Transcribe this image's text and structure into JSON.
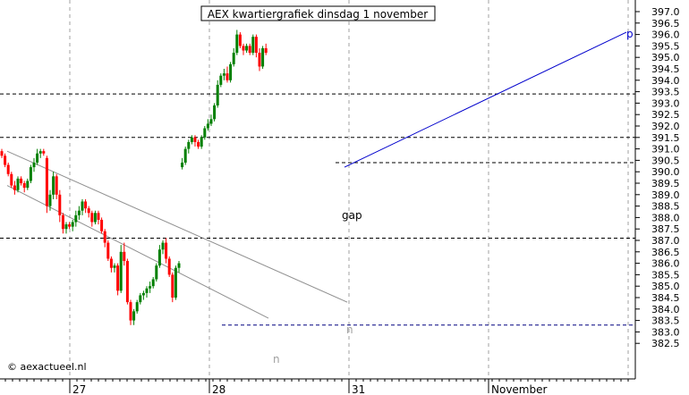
{
  "chart_data": {
    "type": "candlestick",
    "title": "AEX kwartiergrafiek dinsdag 1 november",
    "watermark": "© aexactueel.nl",
    "ylim": [
      382.0,
      397.5
    ],
    "yticks": [
      "397.0",
      "396.5",
      "396.0",
      "395.5",
      "395.0",
      "394.5",
      "394.0",
      "393.5",
      "393.0",
      "392.5",
      "392.0",
      "391.5",
      "391.0",
      "390.5",
      "390.0",
      "389.5",
      "389.0",
      "388.5",
      "388.0",
      "387.5",
      "387.0",
      "386.5",
      "386.0",
      "385.5",
      "385.0",
      "384.5",
      "384.0",
      "383.5",
      "383.0",
      "382.5"
    ],
    "x_labels": [
      "27",
      "28",
      "31",
      "November"
    ],
    "annotations": {
      "gap": "gap",
      "n1": "n",
      "n2": "n",
      "p": "p"
    },
    "horizontal_levels": [
      393.4,
      391.5,
      390.4,
      387.1,
      383.3
    ],
    "colors": {
      "up": "#008000",
      "down": "#ff0000",
      "grid": "#a0a0a0",
      "trend": "#0000cc",
      "channel": "#909090",
      "support": "#000080"
    },
    "candles": [
      [
        391,
        390.9,
        391.0,
        390.6,
        390.7
      ],
      [
        392,
        390.7,
        390.8,
        390.2,
        390.3
      ],
      [
        393,
        390.3,
        390.4,
        389.8,
        389.9
      ],
      [
        394,
        389.9,
        390.0,
        389.3,
        389.4
      ],
      [
        395,
        389.4,
        389.6,
        389.0,
        389.2
      ],
      [
        396,
        389.2,
        389.8,
        389.1,
        389.7
      ],
      [
        397,
        389.7,
        389.8,
        389.4,
        389.5
      ],
      [
        398,
        389.5,
        389.6,
        389.1,
        389.3
      ],
      [
        399,
        389.3,
        389.7,
        389.2,
        389.6
      ],
      [
        400,
        389.6,
        390.3,
        389.5,
        390.2
      ],
      [
        401,
        390.2,
        390.6,
        390.0,
        390.4
      ],
      [
        402,
        390.4,
        391.0,
        390.3,
        390.8
      ],
      [
        403,
        390.8,
        391.0,
        390.6,
        390.9
      ],
      [
        404,
        390.9,
        391.0,
        390.7,
        390.8
      ],
      [
        405,
        390.6,
        390.7,
        388.2,
        388.5
      ],
      [
        406,
        388.5,
        389.2,
        388.3,
        389.0
      ],
      [
        407,
        389.0,
        390.0,
        388.8,
        389.8
      ],
      [
        408,
        389.8,
        389.9,
        388.8,
        389.0
      ],
      [
        409,
        389.0,
        389.2,
        387.8,
        388.1
      ],
      [
        410,
        388.1,
        388.2,
        387.3,
        387.5
      ],
      [
        411,
        387.5,
        387.8,
        387.3,
        387.7
      ],
      [
        412,
        387.7,
        387.8,
        387.5,
        387.6
      ],
      [
        413,
        387.6,
        387.9,
        387.4,
        387.8
      ],
      [
        414,
        387.8,
        388.3,
        387.6,
        388.1
      ],
      [
        415,
        388.1,
        388.5,
        387.9,
        388.3
      ],
      [
        416,
        388.3,
        388.8,
        388.1,
        388.7
      ],
      [
        417,
        388.7,
        388.8,
        388.2,
        388.4
      ],
      [
        418,
        388.4,
        388.5,
        388.0,
        388.2
      ],
      [
        419,
        388.2,
        388.3,
        387.6,
        387.8
      ],
      [
        420,
        387.8,
        388.3,
        387.7,
        388.2
      ],
      [
        421,
        388.2,
        388.3,
        387.7,
        387.9
      ],
      [
        422,
        387.9,
        388.0,
        387.3,
        387.4
      ],
      [
        423,
        387.4,
        387.5,
        386.7,
        386.9
      ],
      [
        424,
        386.9,
        387.0,
        386.1,
        386.2
      ],
      [
        425,
        386.2,
        386.3,
        385.6,
        385.8
      ],
      [
        426,
        385.8,
        386.0,
        385.6,
        385.9
      ],
      [
        427,
        385.9,
        386.0,
        384.6,
        384.8
      ],
      [
        428,
        384.8,
        386.8,
        384.7,
        386.5
      ],
      [
        429,
        386.5,
        386.9,
        385.9,
        386.1
      ],
      [
        430,
        386.1,
        386.2,
        384.2,
        384.3
      ],
      [
        431,
        384.3,
        384.4,
        383.3,
        383.5
      ],
      [
        432,
        383.5,
        384.0,
        383.3,
        383.9
      ],
      [
        433,
        383.9,
        384.4,
        383.8,
        384.3
      ],
      [
        434,
        384.3,
        384.7,
        384.2,
        384.6
      ],
      [
        435,
        384.6,
        384.8,
        384.4,
        384.7
      ],
      [
        436,
        384.7,
        385.0,
        384.5,
        384.9
      ],
      [
        437,
        384.9,
        385.2,
        384.7,
        385.0
      ],
      [
        438,
        385.0,
        385.4,
        384.9,
        385.3
      ],
      [
        439,
        385.3,
        386.0,
        385.2,
        385.9
      ],
      [
        440,
        385.9,
        386.8,
        385.8,
        386.6
      ],
      [
        441,
        386.6,
        387.0,
        386.4,
        386.9
      ],
      [
        442,
        386.9,
        387.1,
        386.0,
        386.2
      ],
      [
        443,
        386.2,
        386.3,
        385.4,
        385.5
      ],
      [
        444,
        385.5,
        385.6,
        384.3,
        384.5
      ],
      [
        445,
        384.5,
        385.9,
        384.4,
        385.8
      ],
      [
        446,
        385.8,
        386.1,
        385.6,
        386.0
      ],
      [
        447,
        390.2,
        390.6,
        390.1,
        390.4
      ],
      [
        448,
        390.4,
        391.1,
        390.3,
        391.0
      ],
      [
        449,
        391.0,
        391.4,
        390.8,
        391.3
      ],
      [
        450,
        391.3,
        391.6,
        391.2,
        391.5
      ],
      [
        451,
        391.5,
        391.6,
        391.1,
        391.3
      ],
      [
        452,
        391.3,
        391.4,
        391.0,
        391.1
      ],
      [
        453,
        391.1,
        391.6,
        391.0,
        391.5
      ],
      [
        454,
        391.5,
        392.0,
        391.4,
        391.9
      ],
      [
        455,
        391.9,
        392.3,
        391.8,
        392.1
      ],
      [
        456,
        392.1,
        392.5,
        392.0,
        392.3
      ],
      [
        457,
        392.3,
        393.0,
        392.2,
        392.9
      ],
      [
        458,
        392.9,
        394.0,
        392.8,
        393.8
      ],
      [
        459,
        393.8,
        394.3,
        393.7,
        394.2
      ],
      [
        460,
        394.2,
        394.5,
        394.0,
        394.3
      ],
      [
        461,
        394.3,
        394.6,
        393.9,
        394.0
      ],
      [
        462,
        394.0,
        394.8,
        393.9,
        394.7
      ],
      [
        463,
        394.7,
        395.4,
        394.6,
        395.2
      ],
      [
        464,
        395.2,
        396.2,
        395.1,
        396.0
      ],
      [
        465,
        396.0,
        396.1,
        395.4,
        395.5
      ],
      [
        466,
        395.5,
        395.6,
        395.1,
        395.3
      ],
      [
        467,
        395.3,
        395.6,
        395.2,
        395.5
      ],
      [
        468,
        395.5,
        395.6,
        395.1,
        395.2
      ],
      [
        469,
        395.2,
        396.0,
        395.1,
        395.9
      ],
      [
        470,
        395.9,
        396.0,
        395.0,
        395.2
      ],
      [
        471,
        395.2,
        395.4,
        394.4,
        394.6
      ],
      [
        472,
        394.6,
        395.5,
        394.5,
        395.4
      ],
      [
        473,
        395.4,
        395.6,
        395.1,
        395.2
      ]
    ]
  }
}
